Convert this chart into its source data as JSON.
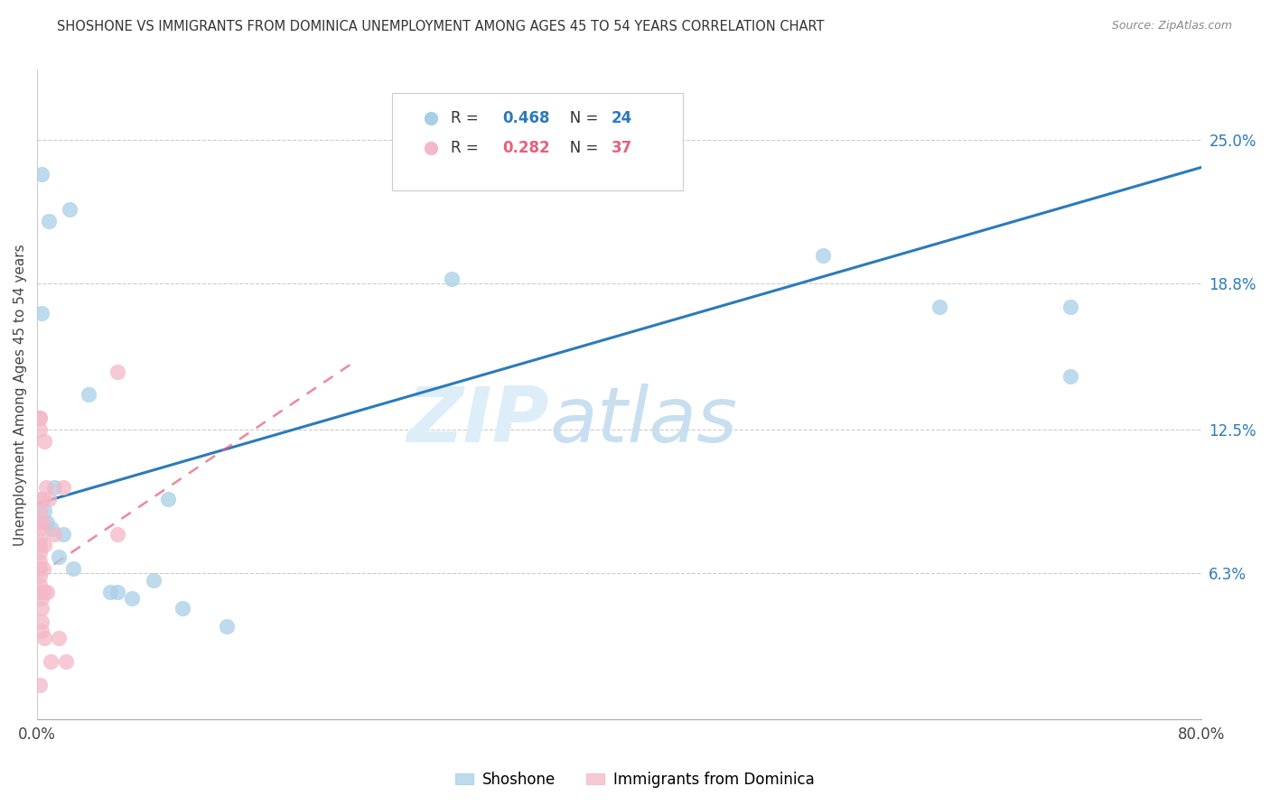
{
  "title": "SHOSHONE VS IMMIGRANTS FROM DOMINICA UNEMPLOYMENT AMONG AGES 45 TO 54 YEARS CORRELATION CHART",
  "source": "Source: ZipAtlas.com",
  "ylabel": "Unemployment Among Ages 45 to 54 years",
  "xlim": [
    0.0,
    0.8
  ],
  "ylim": [
    0.0,
    0.28
  ],
  "yticks": [
    0.063,
    0.125,
    0.188,
    0.25
  ],
  "ytick_labels": [
    "6.3%",
    "12.5%",
    "18.8%",
    "25.0%"
  ],
  "xticks": [
    0.0,
    0.8
  ],
  "xtick_labels": [
    "0.0%",
    "80.0%"
  ],
  "watermark_zip": "ZIP",
  "watermark_atlas": "atlas",
  "shoshone_color": "#a8cfe8",
  "dominica_color": "#f4b8c8",
  "shoshone_line_color": "#2b7bba",
  "dominica_line_color": "#e8607a",
  "R_shoshone": 0.468,
  "N_shoshone": 24,
  "R_dominica": 0.282,
  "N_dominica": 37,
  "shoshone_x": [
    0.003,
    0.008,
    0.022,
    0.003,
    0.005,
    0.007,
    0.01,
    0.012,
    0.015,
    0.018,
    0.025,
    0.035,
    0.05,
    0.055,
    0.065,
    0.08,
    0.09,
    0.1,
    0.13,
    0.285,
    0.54,
    0.62,
    0.71,
    0.71
  ],
  "shoshone_y": [
    0.235,
    0.215,
    0.22,
    0.175,
    0.09,
    0.085,
    0.082,
    0.1,
    0.07,
    0.08,
    0.065,
    0.14,
    0.055,
    0.055,
    0.052,
    0.06,
    0.095,
    0.048,
    0.04,
    0.19,
    0.2,
    0.178,
    0.178,
    0.148
  ],
  "dominica_x": [
    0.002,
    0.002,
    0.002,
    0.002,
    0.002,
    0.002,
    0.002,
    0.002,
    0.002,
    0.002,
    0.002,
    0.002,
    0.002,
    0.002,
    0.002,
    0.003,
    0.003,
    0.003,
    0.003,
    0.004,
    0.004,
    0.004,
    0.005,
    0.005,
    0.005,
    0.005,
    0.006,
    0.007,
    0.008,
    0.009,
    0.012,
    0.015,
    0.018,
    0.02,
    0.055,
    0.055,
    0.002
  ],
  "dominica_y": [
    0.13,
    0.13,
    0.125,
    0.095,
    0.09,
    0.085,
    0.082,
    0.078,
    0.075,
    0.072,
    0.068,
    0.065,
    0.062,
    0.058,
    0.055,
    0.052,
    0.048,
    0.042,
    0.038,
    0.095,
    0.085,
    0.065,
    0.12,
    0.075,
    0.055,
    0.035,
    0.1,
    0.055,
    0.095,
    0.025,
    0.08,
    0.035,
    0.1,
    0.025,
    0.15,
    0.08,
    0.015
  ],
  "shoshone_trendline_x": [
    0.0,
    0.8
  ],
  "shoshone_trendline_y": [
    0.093,
    0.238
  ],
  "dominica_trendline_x": [
    0.0,
    0.22
  ],
  "dominica_trendline_y": [
    0.062,
    0.155
  ]
}
